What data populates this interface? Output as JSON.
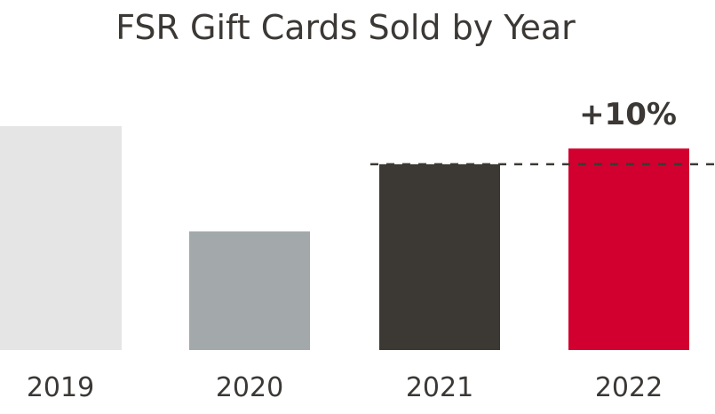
{
  "chart_data": {
    "type": "bar",
    "title": "FSR Gift Cards Sold by Year",
    "xlabel": "",
    "ylabel": "",
    "categories": [
      "2019",
      "2020",
      "2021",
      "2022"
    ],
    "values": [
      100,
      53,
      83,
      90
    ],
    "ylim": [
      0,
      100
    ],
    "grid": false,
    "colors": [
      "#e5e5e5",
      "#a3a9ab",
      "#3c3935",
      "#d2002f"
    ],
    "reference_line": {
      "value": 83,
      "style": "dashed",
      "color": "#3c3935"
    },
    "annotation": {
      "category": "2022",
      "text": "+10%"
    }
  }
}
